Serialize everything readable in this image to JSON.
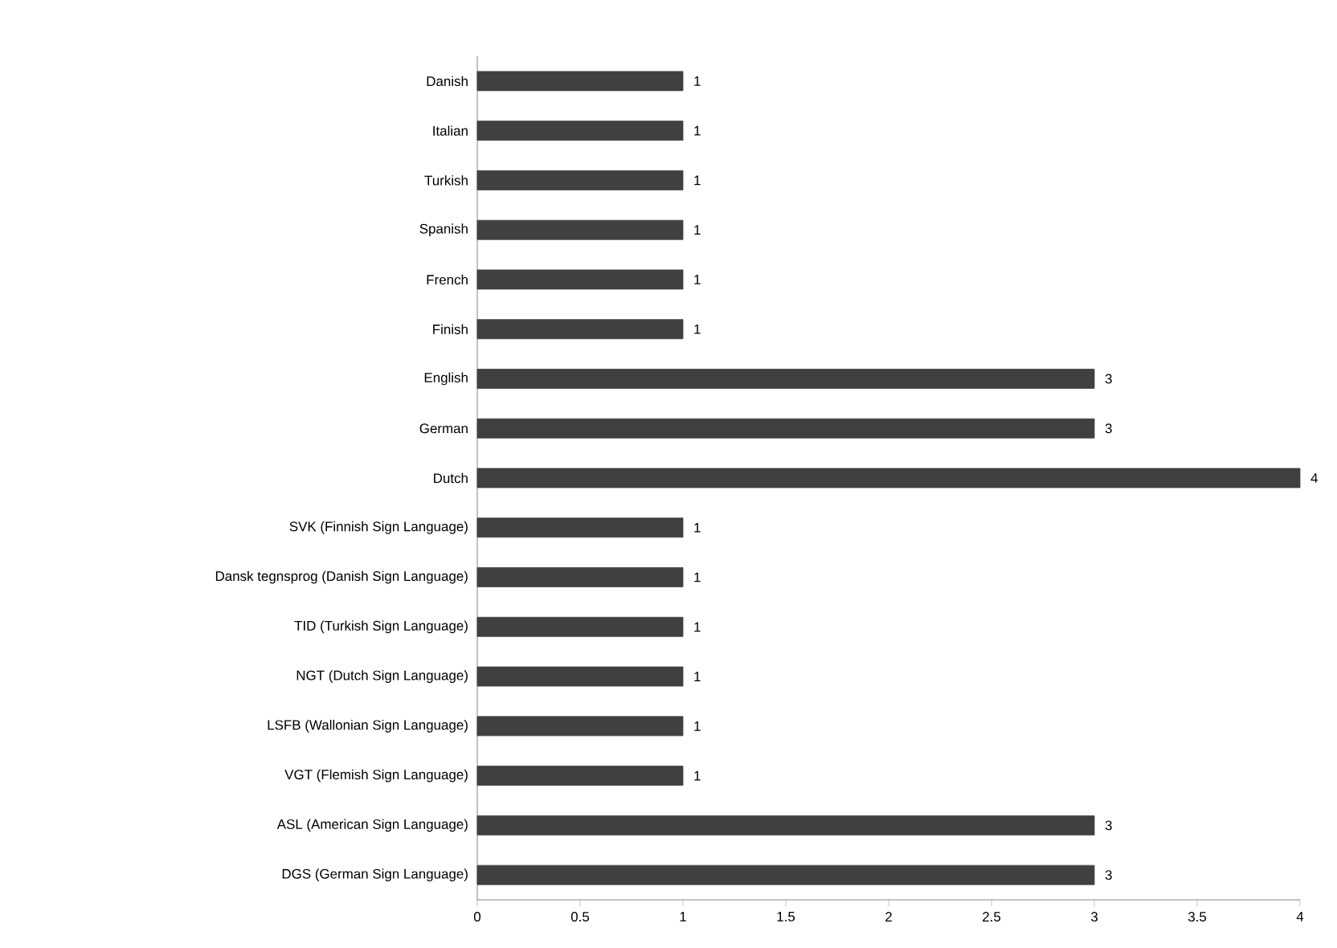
{
  "chart_data": {
    "type": "bar",
    "orientation": "horizontal",
    "categories": [
      "Danish",
      "Italian",
      "Turkish",
      "Spanish",
      "French",
      "Finish",
      "English",
      "German",
      "Dutch",
      "SVK (Finnish Sign Language)",
      "Dansk tegnsprog (Danish Sign Language)",
      "TID (Turkish Sign Language)",
      "NGT (Dutch Sign Language)",
      "LSFB (Wallonian Sign Language)",
      "VGT (Flemish Sign Language)",
      "ASL (American Sign Language)",
      "DGS (German Sign Language)"
    ],
    "values": [
      1,
      1,
      1,
      1,
      1,
      1,
      3,
      3,
      4,
      1,
      1,
      1,
      1,
      1,
      1,
      3,
      3
    ],
    "color": "#404040",
    "xlim": [
      0,
      4
    ],
    "xticks": [
      0,
      0.5,
      1,
      1.5,
      2,
      2.5,
      3,
      3.5,
      4
    ],
    "data_labels": true
  }
}
